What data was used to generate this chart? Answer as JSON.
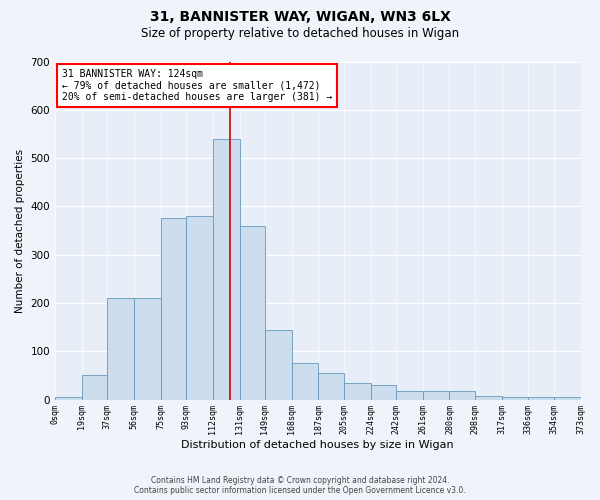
{
  "title1": "31, BANNISTER WAY, WIGAN, WN3 6LX",
  "title2": "Size of property relative to detached houses in Wigan",
  "xlabel": "Distribution of detached houses by size in Wigan",
  "ylabel": "Number of detached properties",
  "footer1": "Contains HM Land Registry data © Crown copyright and database right 2024.",
  "footer2": "Contains public sector information licensed under the Open Government Licence v3.0.",
  "annotation_line1": "31 BANNISTER WAY: 124sqm",
  "annotation_line2": "← 79% of detached houses are smaller (1,472)",
  "annotation_line3": "20% of semi-detached houses are larger (381) →",
  "bar_color": "#ccdded",
  "bar_edge_color": "#6699bb",
  "vline_color": "#cc0000",
  "vline_x": 124,
  "fig_bg_color": "#f0f4fa",
  "ax_bg_color": "#e8eef8",
  "grid_color": "#ffffff",
  "bin_edges": [
    0,
    19,
    37,
    56,
    75,
    93,
    112,
    131,
    149,
    168,
    187,
    205,
    224,
    242,
    261,
    280,
    298,
    317,
    336,
    354,
    373
  ],
  "bar_heights": [
    5,
    50,
    210,
    210,
    375,
    380,
    540,
    360,
    145,
    75,
    55,
    35,
    30,
    18,
    18,
    18,
    8,
    5,
    5,
    5
  ],
  "ylim": [
    0,
    700
  ],
  "yticks": [
    0,
    100,
    200,
    300,
    400,
    500,
    600,
    700
  ],
  "tick_labels": [
    "0sqm",
    "19sqm",
    "37sqm",
    "56sqm",
    "75sqm",
    "93sqm",
    "112sqm",
    "131sqm",
    "149sqm",
    "168sqm",
    "187sqm",
    "205sqm",
    "224sqm",
    "242sqm",
    "261sqm",
    "280sqm",
    "298sqm",
    "317sqm",
    "336sqm",
    "354sqm",
    "373sqm"
  ],
  "title1_fontsize": 10,
  "title2_fontsize": 8.5,
  "xlabel_fontsize": 8,
  "ylabel_fontsize": 7.5,
  "ytick_fontsize": 7.5,
  "xtick_fontsize": 6,
  "footer_fontsize": 5.5,
  "annot_fontsize": 7
}
